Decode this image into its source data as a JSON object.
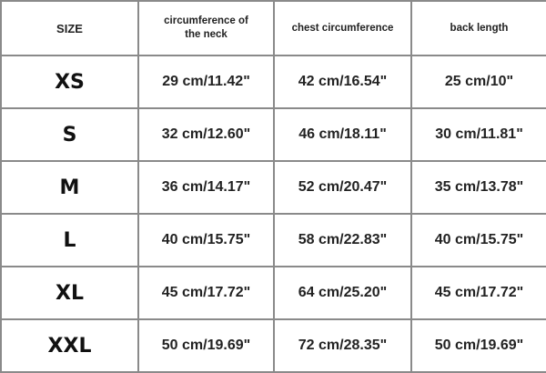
{
  "headers": [
    "SIZE",
    "circumference of the neck",
    "chest circumference",
    "back length"
  ],
  "rows": [
    {
      "size": "XS",
      "neck": "29 cm/11.42\"",
      "chest": "42 cm/16.54\"",
      "back": "25 cm/10\""
    },
    {
      "size": "S",
      "neck": "32 cm/12.60\"",
      "chest": "46 cm/18.11\"",
      "back": "30 cm/11.81\""
    },
    {
      "size": "M",
      "neck": "36 cm/14.17\"",
      "chest": "52 cm/20.47\"",
      "back": "35 cm/13.78\""
    },
    {
      "size": "L",
      "neck": "40 cm/15.75\"",
      "chest": "58 cm/22.83\"",
      "back": "40 cm/15.75\""
    },
    {
      "size": "XL",
      "neck": "45 cm/17.72\"",
      "chest": "64 cm/25.20\"",
      "back": "45 cm/17.72\""
    },
    {
      "size": "XXL",
      "neck": "50 cm/19.69\"",
      "chest": "72 cm/28.35\"",
      "back": "50 cm/19.69\""
    }
  ]
}
